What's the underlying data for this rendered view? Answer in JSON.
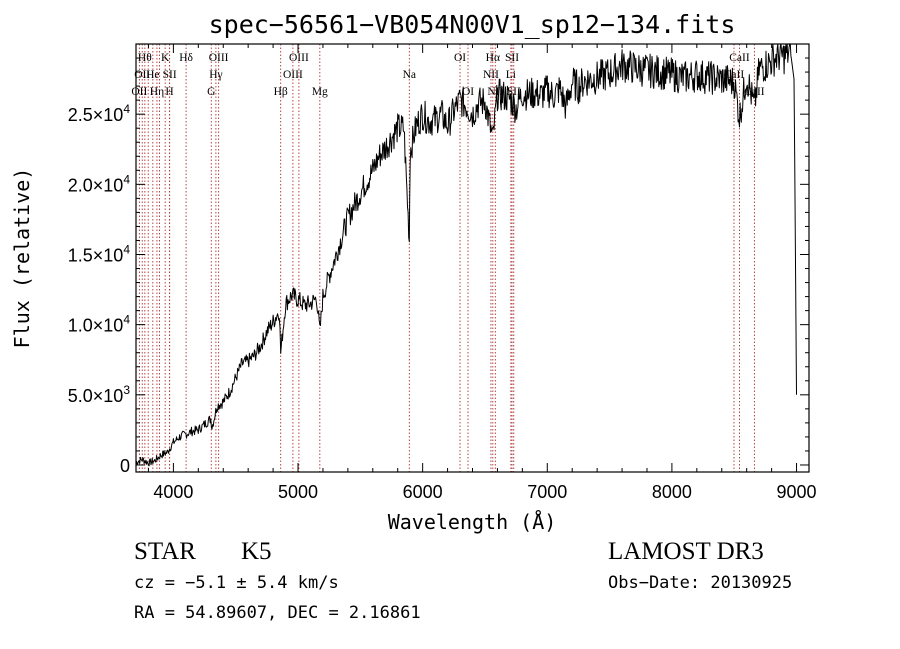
{
  "chart_data": {
    "type": "line",
    "title": "spec−56561−VB054N00V1_sp12−134.fits",
    "xlabel": "Wavelength (Å)",
    "ylabel": "Flux (relative)",
    "xlim": [
      3700,
      9100
    ],
    "ylim": [
      -500,
      30000
    ],
    "x_ticks": [
      {
        "value": 4000,
        "label": "4000"
      },
      {
        "value": 5000,
        "label": "5000"
      },
      {
        "value": 6000,
        "label": "6000"
      },
      {
        "value": 7000,
        "label": "7000"
      },
      {
        "value": 8000,
        "label": "8000"
      },
      {
        "value": 9000,
        "label": "9000"
      }
    ],
    "y_ticks": [
      {
        "value": 0,
        "mant": "0",
        "exp": ""
      },
      {
        "value": 5000,
        "mant": "5.0×10",
        "exp": "3"
      },
      {
        "value": 10000,
        "mant": "1.0×10",
        "exp": "4"
      },
      {
        "value": 15000,
        "mant": "1.5×10",
        "exp": "4"
      },
      {
        "value": 20000,
        "mant": "2.0×10",
        "exp": "4"
      },
      {
        "value": 25000,
        "mant": "2.5×10",
        "exp": "4"
      }
    ],
    "series": [
      {
        "name": "flux",
        "x": [
          3700,
          3750,
          3800,
          3850,
          3900,
          3950,
          4000,
          4050,
          4100,
          4150,
          4200,
          4250,
          4300,
          4310,
          4350,
          4400,
          4450,
          4500,
          4550,
          4600,
          4650,
          4700,
          4750,
          4800,
          4850,
          4861,
          4900,
          4950,
          5000,
          5050,
          5100,
          5150,
          5175,
          5200,
          5250,
          5300,
          5350,
          5400,
          5450,
          5500,
          5550,
          5600,
          5650,
          5700,
          5750,
          5800,
          5850,
          5893,
          5900,
          5950,
          6000,
          6050,
          6100,
          6150,
          6200,
          6250,
          6300,
          6350,
          6400,
          6450,
          6500,
          6563,
          6600,
          6650,
          6700,
          6750,
          6800,
          6850,
          6900,
          6950,
          7000,
          7050,
          7100,
          7150,
          7200,
          7250,
          7300,
          7400,
          7500,
          7600,
          7700,
          7800,
          7900,
          8000,
          8100,
          8200,
          8300,
          8400,
          8500,
          8542,
          8600,
          8662,
          8700,
          8750,
          8800,
          8850,
          8900,
          8950,
          8980,
          9000
        ],
        "y": [
          200,
          400,
          150,
          300,
          700,
          900,
          1600,
          2000,
          2200,
          2400,
          2500,
          2900,
          3300,
          2700,
          4200,
          4500,
          5200,
          6200,
          7200,
          7400,
          7800,
          8500,
          9500,
          10200,
          11000,
          8000,
          11500,
          12100,
          11800,
          11400,
          11500,
          11900,
          9500,
          12000,
          13500,
          14800,
          16200,
          17600,
          18500,
          19400,
          20200,
          21000,
          22000,
          22600,
          23300,
          24000,
          24000,
          16000,
          22400,
          24200,
          25000,
          24500,
          24600,
          25000,
          24200,
          25200,
          26000,
          25600,
          25000,
          25800,
          25900,
          23200,
          26400,
          26300,
          26100,
          25400,
          26500,
          26400,
          26500,
          26300,
          26700,
          26300,
          26800,
          25500,
          27300,
          26900,
          27400,
          27600,
          27900,
          28500,
          28300,
          28100,
          28000,
          27800,
          27600,
          27800,
          27600,
          27500,
          27300,
          24800,
          27700,
          25500,
          28200,
          28500,
          28800,
          29200,
          29100,
          29500,
          27500,
          5000
        ]
      }
    ],
    "lines": [
      {
        "w": 3727,
        "row": 2,
        "label": "OII"
      },
      {
        "w": 3750,
        "row": 1,
        "label": "OII"
      },
      {
        "w": 3771,
        "row": 0,
        "label": "Hθ"
      },
      {
        "w": 3798,
        "row": 2,
        "label": ""
      },
      {
        "w": 3835,
        "row": 1,
        "label": "He"
      },
      {
        "w": 3868,
        "row": 2,
        "label": "Hη"
      },
      {
        "w": 3889,
        "row": 1,
        "label": ""
      },
      {
        "w": 3934,
        "row": 0,
        "label": "K"
      },
      {
        "w": 3969,
        "row": 2,
        "label": "H"
      },
      {
        "w": 3970,
        "row": 1,
        "label": "SII"
      },
      {
        "w": 4102,
        "row": 0,
        "label": "Hδ"
      },
      {
        "w": 4304,
        "row": 2,
        "label": "G"
      },
      {
        "w": 4341,
        "row": 1,
        "label": "Hγ"
      },
      {
        "w": 4363,
        "row": 0,
        "label": "OIII"
      },
      {
        "w": 4861,
        "row": 2,
        "label": "Hβ"
      },
      {
        "w": 4959,
        "row": 1,
        "label": "OIII"
      },
      {
        "w": 5007,
        "row": 0,
        "label": "OIII"
      },
      {
        "w": 5175,
        "row": 2,
        "label": "Mg"
      },
      {
        "w": 5893,
        "row": 1,
        "label": "Na"
      },
      {
        "w": 6300,
        "row": 0,
        "label": "OI"
      },
      {
        "w": 6364,
        "row": 2,
        "label": "OI"
      },
      {
        "w": 6548,
        "row": 1,
        "label": "NII"
      },
      {
        "w": 6563,
        "row": 0,
        "label": "Hα"
      },
      {
        "w": 6583,
        "row": 2,
        "label": "NII"
      },
      {
        "w": 6708,
        "row": 1,
        "label": "Li"
      },
      {
        "w": 6717,
        "row": 0,
        "label": "SII"
      },
      {
        "w": 6731,
        "row": 2,
        "label": "SII"
      },
      {
        "w": 8498,
        "row": 1,
        "label": "CaII"
      },
      {
        "w": 8542,
        "row": 0,
        "label": "CaII"
      },
      {
        "w": 8662,
        "row": 2,
        "label": "CaII"
      }
    ]
  },
  "info": {
    "object_type": "STAR",
    "subclass": "K5",
    "survey": "LAMOST DR3",
    "cz": "cz = −5.1 ± 5.4 km/s",
    "obs_date": "Obs−Date: 20130925",
    "radec": "RA =  54.89607, DEC =   2.16861"
  }
}
